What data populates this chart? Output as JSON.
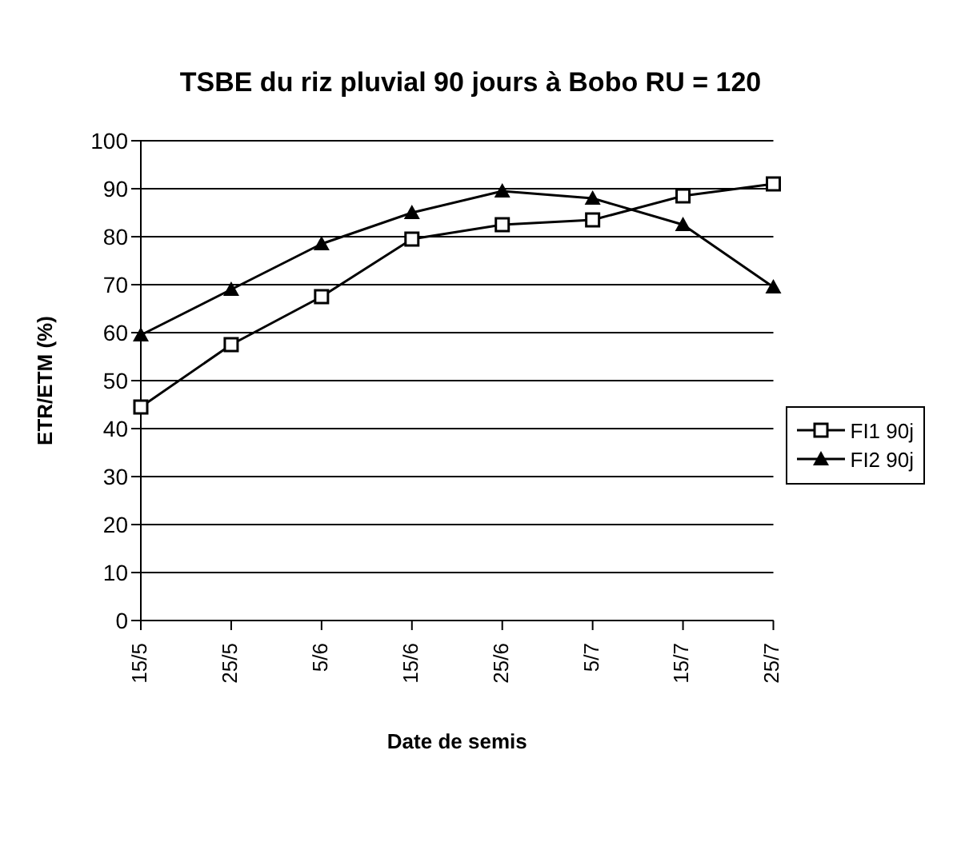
{
  "chart_data": {
    "type": "line",
    "title": "TSBE du riz pluvial 90 jours à Bobo RU = 120",
    "xlabel": "Date de semis",
    "ylabel": "ETR/ETM (%)",
    "categories": [
      "15/5",
      "25/5",
      "5/6",
      "15/6",
      "25/6",
      "5/7",
      "15/7",
      "25/7"
    ],
    "series": [
      {
        "name": "FI1 90j",
        "color": "#000000",
        "marker": "square",
        "values": [
          44.5,
          57.5,
          67.5,
          79.5,
          82.5,
          83.5,
          88.5,
          91
        ]
      },
      {
        "name": "FI2 90j",
        "color": "#000000",
        "marker": "triangle",
        "values": [
          59.5,
          69,
          78.5,
          85,
          89.5,
          88,
          82.5,
          69.5
        ]
      }
    ],
    "ylim": [
      0,
      100
    ],
    "yticks": [
      0,
      10,
      20,
      30,
      40,
      50,
      60,
      70,
      80,
      90,
      100
    ],
    "grid": "y",
    "legend": "right"
  }
}
